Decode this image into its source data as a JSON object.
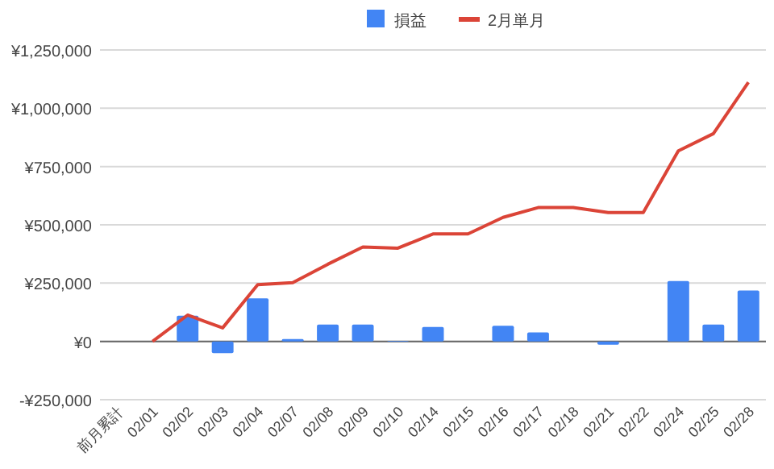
{
  "chart_data": {
    "type": "bar",
    "categories": [
      "前月累計",
      "02/01",
      "02/02",
      "02/03",
      "02/04",
      "02/07",
      "02/08",
      "02/09",
      "02/10",
      "02/14",
      "02/15",
      "02/16",
      "02/17",
      "02/18",
      "02/21",
      "02/22",
      "02/24",
      "02/25",
      "02/28"
    ],
    "series": [
      {
        "name": "損益",
        "color": "#4285f4",
        "values": [
          0,
          0,
          110000,
          -50000,
          185000,
          10000,
          72000,
          72000,
          2000,
          62000,
          0,
          67000,
          39000,
          0,
          -14000,
          0,
          259000,
          72000,
          218000
        ]
      },
      {
        "name": "2月単月",
        "type": "line",
        "color": "#db4437",
        "values": [
          null,
          0,
          113000,
          58000,
          243000,
          252000,
          331000,
          405000,
          400000,
          461000,
          461000,
          532000,
          574000,
          574000,
          553000,
          553000,
          817000,
          891000,
          1111000
        ]
      }
    ],
    "ylim": [
      -250000,
      1250000
    ],
    "yticks": [
      {
        "value": -250000,
        "label": "-¥250,000"
      },
      {
        "value": 0,
        "label": "¥0"
      },
      {
        "value": 250000,
        "label": "¥250,000"
      },
      {
        "value": 500000,
        "label": "¥500,000"
      },
      {
        "value": 750000,
        "label": "¥750,000"
      },
      {
        "value": 1000000,
        "label": "¥1,000,000"
      },
      {
        "value": 1250000,
        "label": "¥1,250,000"
      }
    ],
    "grid": "y",
    "legend": "top"
  }
}
